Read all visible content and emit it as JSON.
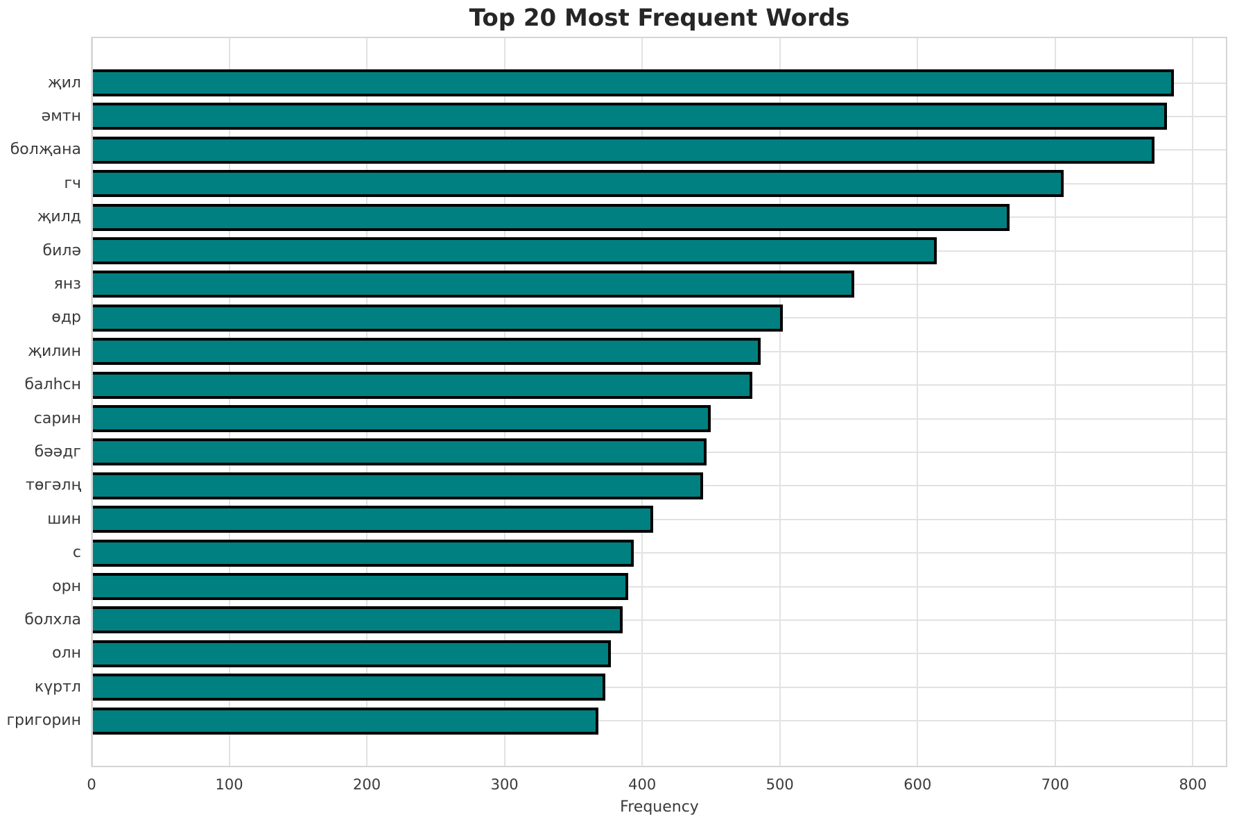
{
  "chart_data": {
    "type": "bar",
    "orientation": "horizontal",
    "title": "Top 20 Most Frequent Words",
    "xlabel": "Frequency",
    "ylabel": "",
    "categories": [
      "җил",
      "әмтн",
      "болҗана",
      "гч",
      "җилд",
      "билә",
      "янз",
      "өдр",
      "җилин",
      "балһсн",
      "сарин",
      "бәәдг",
      "төгәлң",
      "шин",
      "с",
      "орн",
      "болхла",
      "олн",
      "күртл",
      "григорин"
    ],
    "values": [
      786,
      781,
      772,
      706,
      667,
      614,
      554,
      502,
      486,
      480,
      450,
      447,
      444,
      408,
      394,
      390,
      386,
      377,
      373,
      368
    ],
    "x_ticks": [
      0,
      100,
      200,
      300,
      400,
      500,
      600,
      700,
      800
    ],
    "xlim": [
      0,
      825
    ],
    "grid": true,
    "legend": false,
    "bar_color": "#008080",
    "bar_edge_color": "#000000",
    "grid_color": "#e2e2e2",
    "background_color": "#ffffff"
  }
}
